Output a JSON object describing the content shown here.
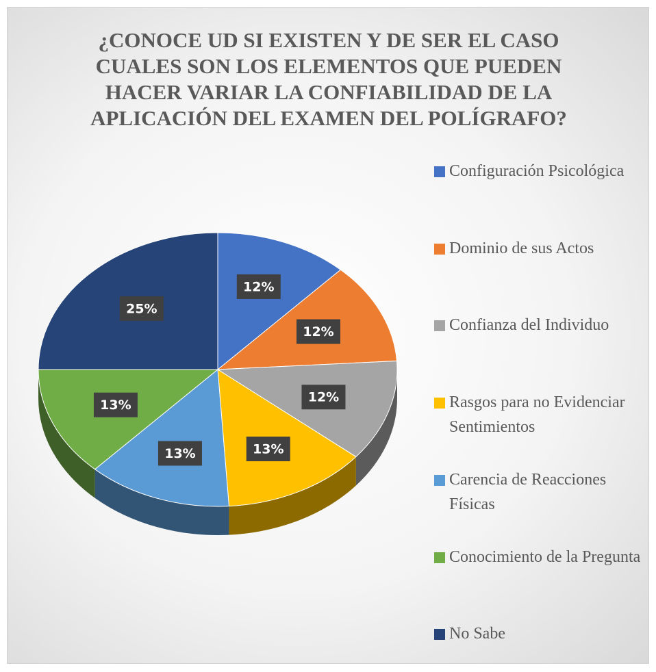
{
  "chart_data": {
    "type": "pie",
    "title": "¿CONOCE UD SI EXISTEN Y DE SER EL CASO CUALES SON LOS ELEMENTOS QUE PUEDEN HACER VARIAR LA CONFIABILIDAD DE LA APLICACIÓN DEL EXAMEN DEL POLÍGRAFO?",
    "categories": [
      "Configuración Psicológica",
      "Dominio de sus Actos",
      "Confianza del Individuo",
      "Rasgos para no Evidenciar Sentimientos",
      "Carencia de Reacciones Físicas",
      "Conocimiento de la Pregunta",
      "No Sabe"
    ],
    "values": [
      12,
      12,
      12,
      13,
      13,
      13,
      25
    ],
    "value_labels": [
      "12%",
      "12%",
      "12%",
      "13%",
      "13%",
      "13%",
      "25%"
    ],
    "colors": [
      "#4472c4",
      "#ed7d31",
      "#a5a5a5",
      "#ffc000",
      "#5b9bd5",
      "#70ad47",
      "#264478"
    ],
    "legend": "right"
  }
}
